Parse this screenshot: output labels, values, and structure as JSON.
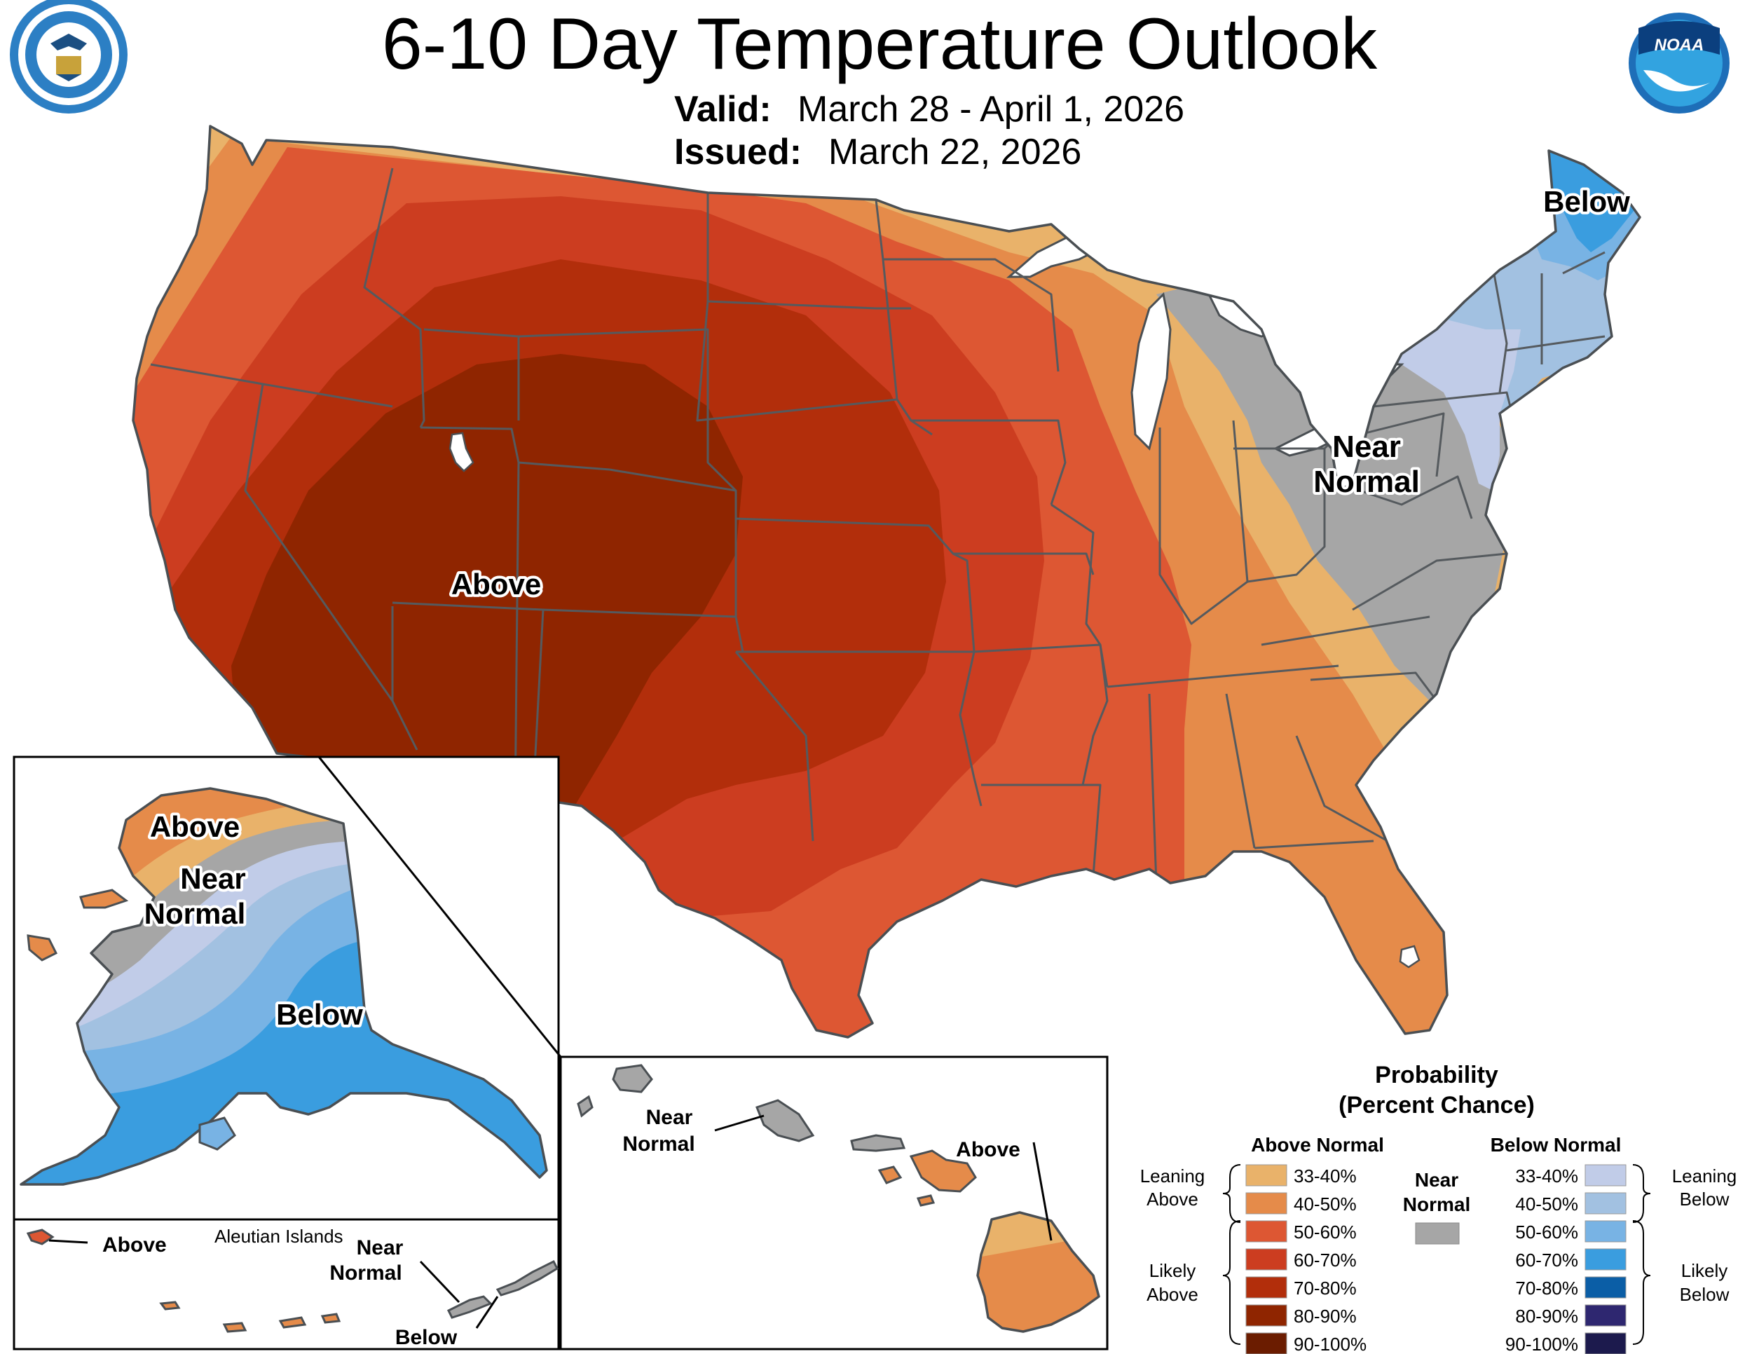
{
  "header": {
    "title": "6-10 Day Temperature Outlook",
    "valid_label": "Valid:",
    "valid_value": "March 28 - April 1, 2026",
    "issued_label": "Issued:",
    "issued_value": "March 22, 2026"
  },
  "logos": {
    "commerce_seal_text": "DEPARTMENT OF COMMERCE · UNITED STATES OF AMERICA",
    "noaa_text": "NOAA"
  },
  "map_labels": {
    "conus_above": "Above",
    "conus_near_1": "Near",
    "conus_near_2": "Normal",
    "conus_below": "Below",
    "ak_above": "Above",
    "ak_near_1": "Near",
    "ak_near_2": "Normal",
    "ak_below": "Below",
    "aleutian_title": "Aleutian Islands",
    "aleutian_above": "Above",
    "aleutian_near_1": "Near",
    "aleutian_near_2": "Normal",
    "aleutian_below": "Below",
    "hi_near_1": "Near",
    "hi_near_2": "Normal",
    "hi_above": "Above"
  },
  "legend": {
    "title_1": "Probability",
    "title_2": "(Percent Chance)",
    "above_header": "Above Normal",
    "below_header": "Below Normal",
    "near_1": "Near",
    "near_2": "Normal",
    "near_color": "#a6a6a6",
    "leaning_above_1": "Leaning",
    "leaning_above_2": "Above",
    "likely_above_1": "Likely",
    "likely_above_2": "Above",
    "leaning_below_1": "Leaning",
    "leaning_below_2": "Below",
    "likely_below_1": "Likely",
    "likely_below_2": "Below",
    "above": [
      {
        "label": "33-40%",
        "color": "#e9b26a"
      },
      {
        "label": "40-50%",
        "color": "#e58b4a"
      },
      {
        "label": "50-60%",
        "color": "#dd5733"
      },
      {
        "label": "60-70%",
        "color": "#cc3d20"
      },
      {
        "label": "70-80%",
        "color": "#b22e0b"
      },
      {
        "label": "80-90%",
        "color": "#8f2500"
      },
      {
        "label": "90-100%",
        "color": "#6b1c00"
      }
    ],
    "below": [
      {
        "label": "33-40%",
        "color": "#c1cce8"
      },
      {
        "label": "40-50%",
        "color": "#a2c1e1"
      },
      {
        "label": "50-60%",
        "color": "#78b3e4"
      },
      {
        "label": "60-70%",
        "color": "#3a9ddf"
      },
      {
        "label": "70-80%",
        "color": "#0b5ea6"
      },
      {
        "label": "80-90%",
        "color": "#2e2770"
      },
      {
        "label": "90-100%",
        "color": "#1c1a4d"
      }
    ]
  }
}
